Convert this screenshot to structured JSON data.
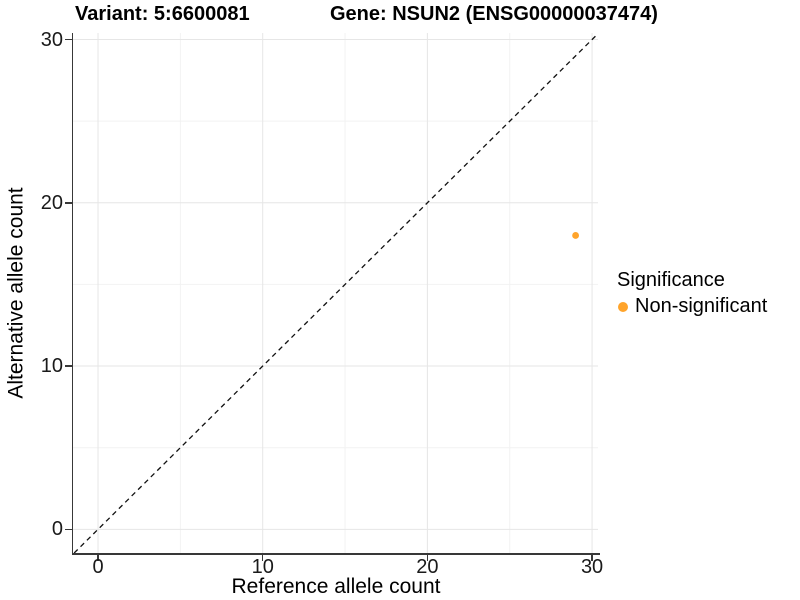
{
  "titles": {
    "variant": "Variant: 5:6600081",
    "gene": "Gene: NSUN2 (ENSG00000037474)"
  },
  "axes": {
    "x": {
      "label": "Reference allele count",
      "tick_labels": [
        "0",
        "10",
        "20",
        "30"
      ]
    },
    "y": {
      "label": "Alternative allele count",
      "tick_labels": [
        "0",
        "10",
        "20",
        "30"
      ]
    }
  },
  "legend": {
    "title": "Significance",
    "items": [
      {
        "label": "Non-significant",
        "color": "#FFA42B"
      }
    ]
  },
  "colors": {
    "point": "#FFA42B",
    "axis_line": "#383838",
    "grid_major": "#e6e6e6",
    "grid_minor": "#f2f2f2",
    "identity_line": "#111111"
  },
  "chart_data": {
    "type": "scatter",
    "title": "Variant: 5:6600081   Gene: NSUN2 (ENSG00000037474)",
    "xlabel": "Reference allele count",
    "ylabel": "Alternative allele count",
    "xlim": [
      -1.52,
      30.36
    ],
    "ylim": [
      -1.45,
      30.4
    ],
    "xticks": [
      0,
      10,
      20,
      30
    ],
    "yticks": [
      0,
      10,
      20,
      30
    ],
    "minor_gridlines_x": [
      5,
      15,
      25
    ],
    "minor_gridlines_y": [
      5,
      15,
      25
    ],
    "grid": true,
    "identity_line": {
      "equation": "y = x",
      "style": "dashed",
      "color": "#111111"
    },
    "legend_position": "right",
    "series": [
      {
        "name": "Non-significant",
        "color": "#FFA42B",
        "points": [
          {
            "x": 29,
            "y": 18
          }
        ]
      }
    ]
  }
}
